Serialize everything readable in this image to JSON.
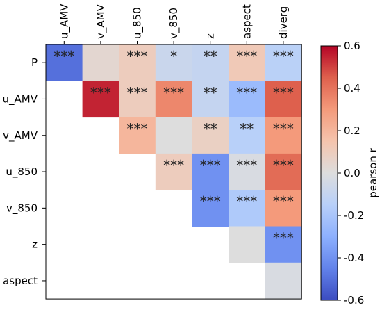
{
  "chart_data": {
    "type": "heatmap",
    "title": "",
    "xlabel": "",
    "ylabel": "",
    "x_categories": [
      "u_AMV",
      "v_AMV",
      "u_850",
      "v_850",
      "z",
      "aspect",
      "diverg"
    ],
    "y_categories": [
      "P",
      "u_AMV",
      "v_AMV",
      "u_850",
      "v_850",
      "z",
      "aspect"
    ],
    "cells": [
      {
        "row": 0,
        "col": 0,
        "value": -0.5,
        "sig": "***"
      },
      {
        "row": 0,
        "col": 1,
        "value": 0.04,
        "sig": ""
      },
      {
        "row": 0,
        "col": 2,
        "value": 0.1,
        "sig": "***"
      },
      {
        "row": 0,
        "col": 3,
        "value": -0.08,
        "sig": "*"
      },
      {
        "row": 0,
        "col": 4,
        "value": -0.1,
        "sig": "**"
      },
      {
        "row": 0,
        "col": 5,
        "value": 0.12,
        "sig": "***"
      },
      {
        "row": 0,
        "col": 6,
        "value": -0.14,
        "sig": "***"
      },
      {
        "row": 1,
        "col": 1,
        "value": 0.55,
        "sig": "***"
      },
      {
        "row": 1,
        "col": 2,
        "value": 0.1,
        "sig": "***"
      },
      {
        "row": 1,
        "col": 3,
        "value": 0.35,
        "sig": "***"
      },
      {
        "row": 1,
        "col": 4,
        "value": -0.1,
        "sig": "**"
      },
      {
        "row": 1,
        "col": 5,
        "value": -0.25,
        "sig": "***"
      },
      {
        "row": 1,
        "col": 6,
        "value": 0.45,
        "sig": "***"
      },
      {
        "row": 2,
        "col": 2,
        "value": 0.2,
        "sig": "***"
      },
      {
        "row": 2,
        "col": 3,
        "value": 0.0,
        "sig": ""
      },
      {
        "row": 2,
        "col": 4,
        "value": 0.08,
        "sig": "**"
      },
      {
        "row": 2,
        "col": 5,
        "value": -0.15,
        "sig": "**"
      },
      {
        "row": 2,
        "col": 6,
        "value": 0.3,
        "sig": "***"
      },
      {
        "row": 3,
        "col": 3,
        "value": 0.1,
        "sig": "***"
      },
      {
        "row": 3,
        "col": 4,
        "value": -0.4,
        "sig": "***"
      },
      {
        "row": 3,
        "col": 5,
        "value": -0.02,
        "sig": "***"
      },
      {
        "row": 3,
        "col": 6,
        "value": 0.42,
        "sig": "***"
      },
      {
        "row": 4,
        "col": 4,
        "value": -0.4,
        "sig": "***"
      },
      {
        "row": 4,
        "col": 5,
        "value": -0.18,
        "sig": "***"
      },
      {
        "row": 4,
        "col": 6,
        "value": 0.3,
        "sig": "***"
      },
      {
        "row": 5,
        "col": 5,
        "value": 0.0,
        "sig": ""
      },
      {
        "row": 5,
        "col": 6,
        "value": -0.4,
        "sig": "***"
      },
      {
        "row": 6,
        "col": 6,
        "value": -0.02,
        "sig": ""
      }
    ],
    "colorbar": {
      "label": "pearson r",
      "min": -0.6,
      "max": 0.6,
      "ticks": [
        0.6,
        0.4,
        0.2,
        0.0,
        -0.2,
        -0.4,
        -0.6
      ],
      "tick_labels": [
        "0.6",
        "0.4",
        "0.2",
        "0.0",
        "-0.2",
        "-0.4",
        "-0.6"
      ],
      "colormap": "coolwarm"
    }
  }
}
